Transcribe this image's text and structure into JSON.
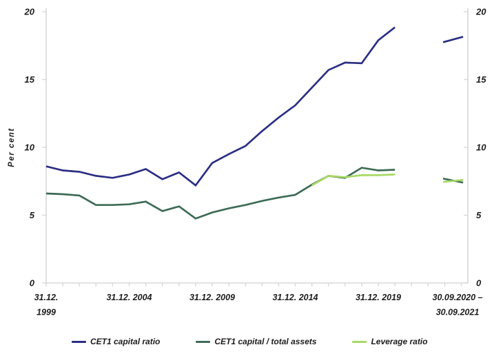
{
  "chart_data": {
    "type": "line",
    "title": "",
    "ylabel": "Per cent",
    "ylim": [
      0,
      20
    ],
    "yticks": [
      0,
      5,
      10,
      15,
      20
    ],
    "grid": false,
    "legend_position": "bottom",
    "axis_color": "#d8d8d8",
    "text_color": "#1c1c1c",
    "x": [
      1999,
      2000,
      2001,
      2002,
      2003,
      2004,
      2005,
      2006,
      2007,
      2008,
      2009,
      2010,
      2011,
      2012,
      2013,
      2014,
      2015,
      2016,
      2017,
      2018,
      2019,
      2020
    ],
    "x_major_labels": [
      {
        "anchor_year": 1999,
        "lines": [
          "31.12.",
          "1999"
        ]
      },
      {
        "anchor_year": 2004,
        "lines": [
          "31.12. 2004"
        ]
      },
      {
        "anchor_year": 2009,
        "lines": [
          "31.12. 2009"
        ]
      },
      {
        "anchor_year": 2014,
        "lines": [
          "31.12. 2014"
        ]
      },
      {
        "anchor_year": 2019,
        "lines": [
          "31.12. 2019"
        ]
      },
      {
        "anchor_year": null,
        "lines": [
          "30.09.2020 –",
          "30.09.2021"
        ]
      }
    ],
    "series": [
      {
        "name": "CET1 capital ratio",
        "color": "#2b2e83",
        "values": [
          8.6,
          8.3,
          8.2,
          7.9,
          7.75,
          8.0,
          8.4,
          7.65,
          8.15,
          7.2,
          8.85,
          9.5,
          10.1,
          11.2,
          12.2,
          13.1,
          14.4,
          15.7,
          16.25,
          16.2,
          17.9,
          18.85
        ],
        "segment_values": [
          17.75,
          18.15
        ]
      },
      {
        "name": "CET1 capital / total assets",
        "color": "#3d6b55",
        "values": [
          6.6,
          6.55,
          6.45,
          5.75,
          5.75,
          5.8,
          6.0,
          5.3,
          5.65,
          4.75,
          5.2,
          5.5,
          5.75,
          6.05,
          6.3,
          6.5,
          7.25,
          7.9,
          7.75,
          8.5,
          8.3,
          8.35
        ],
        "segment_values": [
          7.7,
          7.4
        ]
      },
      {
        "name": "Leverage ratio",
        "color": "#a6d964",
        "values": [
          null,
          null,
          null,
          null,
          null,
          null,
          null,
          null,
          null,
          null,
          null,
          null,
          null,
          null,
          null,
          null,
          7.2,
          7.9,
          7.8,
          7.95,
          7.95,
          8.0
        ],
        "segment_values": [
          7.45,
          7.6
        ]
      }
    ]
  }
}
